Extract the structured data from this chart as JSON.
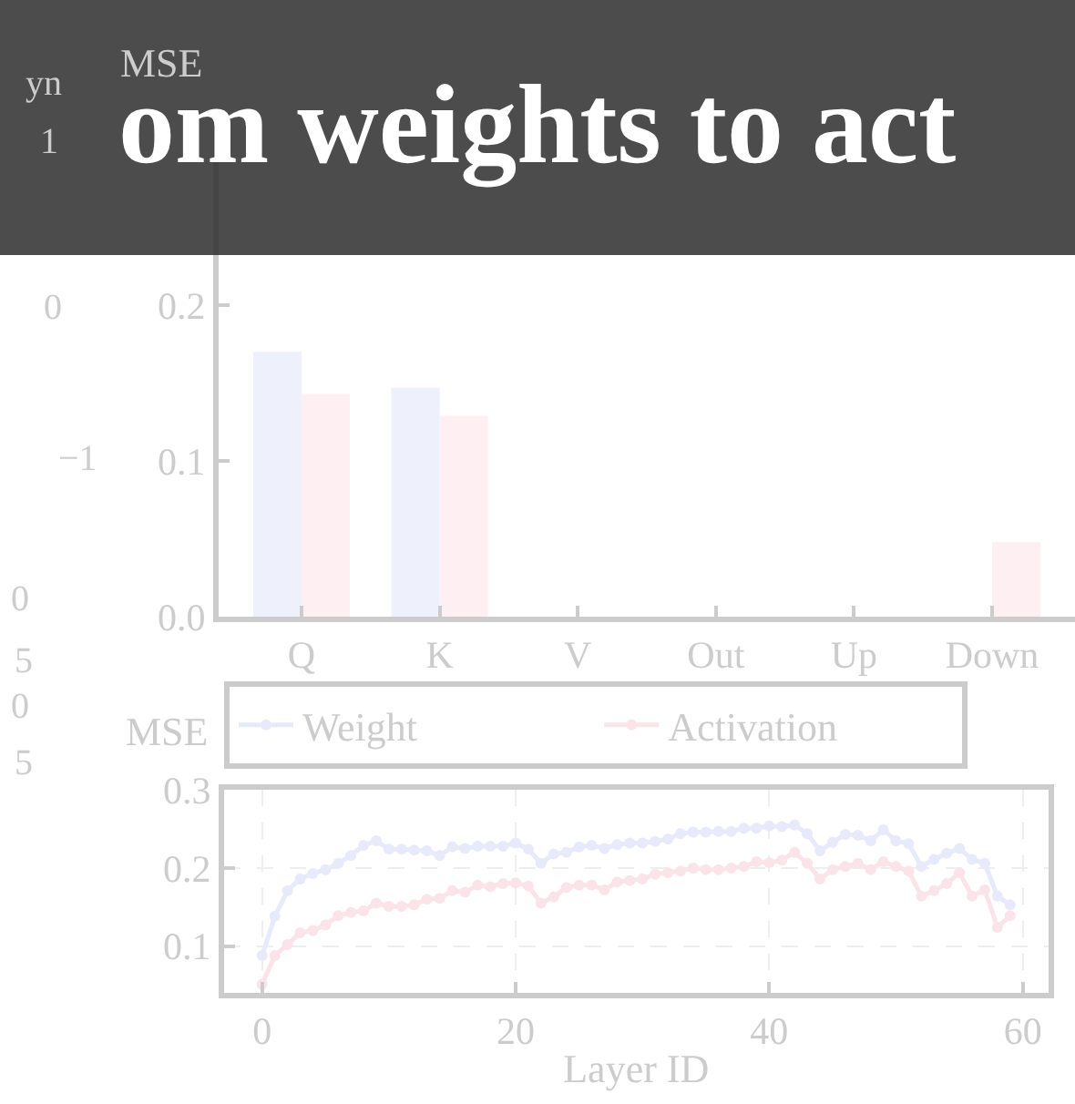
{
  "chart_data": [
    {
      "type": "other",
      "annotations": [
        "yn",
        "1",
        "0",
        "−1",
        "0",
        "5",
        "0",
        "5"
      ]
    },
    {
      "type": "bar",
      "title": "om weights to act",
      "ylabel": "MSE",
      "categories": [
        "Q",
        "K",
        "V",
        "Out",
        "Up",
        "Down"
      ],
      "series": [
        {
          "color": "#eef1fb",
          "values": [
            0.17,
            0.147,
            null,
            null,
            null,
            null
          ]
        },
        {
          "color": "#fdeff2",
          "values": [
            0.143,
            0.129,
            null,
            null,
            null,
            0.048
          ]
        }
      ],
      "ylim": [
        0,
        0.32
      ],
      "yticks": [
        {
          "value": 0,
          "label": "0.0"
        },
        0.1,
        0.2
      ],
      "grid": false
    },
    {
      "type": "line",
      "xlabel": "Layer ID",
      "ylabel": "MSE",
      "x": [
        0,
        1,
        2,
        3,
        4,
        5,
        6,
        7,
        8,
        9,
        10,
        11,
        12,
        13,
        14,
        15,
        16,
        17,
        18,
        19,
        20,
        21,
        22,
        23,
        24,
        25,
        26,
        27,
        28,
        29,
        30,
        31,
        32,
        33,
        34,
        35,
        36,
        37,
        38,
        39,
        40,
        41,
        42,
        43,
        44,
        45,
        46,
        47,
        48,
        49,
        50,
        51,
        52,
        53,
        54,
        55,
        56,
        57,
        58,
        59
      ],
      "series": [
        {
          "name": "Weight",
          "color": "#e6eafa",
          "values": [
            0.088,
            0.138,
            0.171,
            0.186,
            0.193,
            0.198,
            0.206,
            0.216,
            0.229,
            0.235,
            0.224,
            0.224,
            0.223,
            0.222,
            0.216,
            0.227,
            0.225,
            0.228,
            0.228,
            0.228,
            0.232,
            0.224,
            0.206,
            0.218,
            0.22,
            0.227,
            0.229,
            0.225,
            0.23,
            0.232,
            0.232,
            0.234,
            0.237,
            0.244,
            0.246,
            0.246,
            0.247,
            0.247,
            0.251,
            0.251,
            0.254,
            0.253,
            0.255,
            0.244,
            0.222,
            0.233,
            0.243,
            0.242,
            0.235,
            0.249,
            0.235,
            0.231,
            0.202,
            0.211,
            0.219,
            0.225,
            0.211,
            0.206,
            0.164,
            0.153
          ]
        },
        {
          "name": "Activation",
          "color": "#fbe4e9",
          "values": [
            0.051,
            0.088,
            0.102,
            0.117,
            0.12,
            0.127,
            0.139,
            0.143,
            0.145,
            0.155,
            0.151,
            0.151,
            0.153,
            0.16,
            0.161,
            0.171,
            0.169,
            0.178,
            0.176,
            0.18,
            0.181,
            0.177,
            0.155,
            0.163,
            0.175,
            0.178,
            0.178,
            0.172,
            0.182,
            0.184,
            0.186,
            0.192,
            0.194,
            0.196,
            0.2,
            0.198,
            0.198,
            0.2,
            0.202,
            0.208,
            0.207,
            0.21,
            0.22,
            0.206,
            0.186,
            0.198,
            0.202,
            0.206,
            0.198,
            0.208,
            0.202,
            0.196,
            0.164,
            0.171,
            0.18,
            0.194,
            0.164,
            0.172,
            0.124,
            0.139
          ]
        }
      ],
      "xlim": [
        -3,
        62
      ],
      "xticks": [
        0,
        20,
        40,
        60
      ],
      "ylim": [
        0.04,
        0.3
      ],
      "yticks": [
        0.1,
        0.2,
        0.3
      ],
      "grid": true,
      "legend": "top",
      "marker": "circle",
      "line_style": "solid"
    }
  ]
}
